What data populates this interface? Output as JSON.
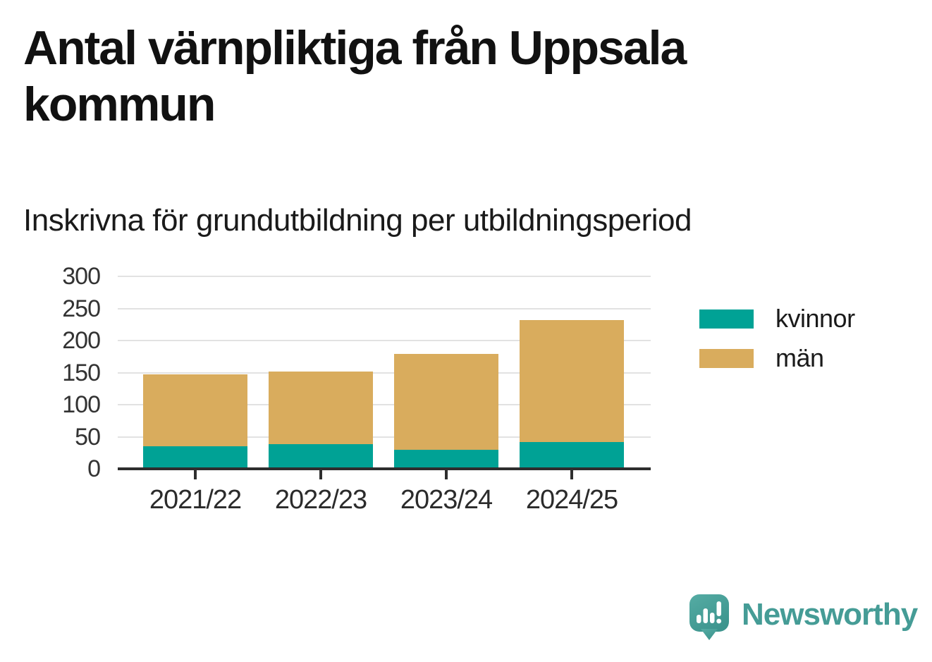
{
  "chart_data": {
    "type": "bar",
    "stacked": true,
    "title": "Antal värnpliktiga från Uppsala kommun",
    "subtitle": "Inskrivna för grundutbildning per utbildningsperiod",
    "categories": [
      "2021/22",
      "2022/23",
      "2023/24",
      "2024/25"
    ],
    "series": [
      {
        "name": "kvinnor",
        "color": "#00a295",
        "values": [
          33,
          36,
          28,
          40
        ]
      },
      {
        "name": "män",
        "color": "#d9ac5d",
        "values": [
          112,
          114,
          149,
          190
        ]
      }
    ],
    "stack_totals": [
      145,
      150,
      177,
      230
    ],
    "xlabel": "",
    "ylabel": "",
    "ylim": [
      0,
      300
    ],
    "yticks": [
      0,
      50,
      100,
      150,
      200,
      250,
      300
    ],
    "grid": true,
    "legend_position": "right"
  },
  "colors": {
    "kvinnor": "#00a295",
    "man": "#d9ac5d",
    "gridline": "#e2e2e2",
    "axis": "#2e2e2e",
    "text": "#1a1a1a"
  },
  "branding": {
    "logo_text": "Newsworthy",
    "logo_color": "#459c96",
    "logo_icon": "speech-bubble-bar-chart-icon"
  }
}
